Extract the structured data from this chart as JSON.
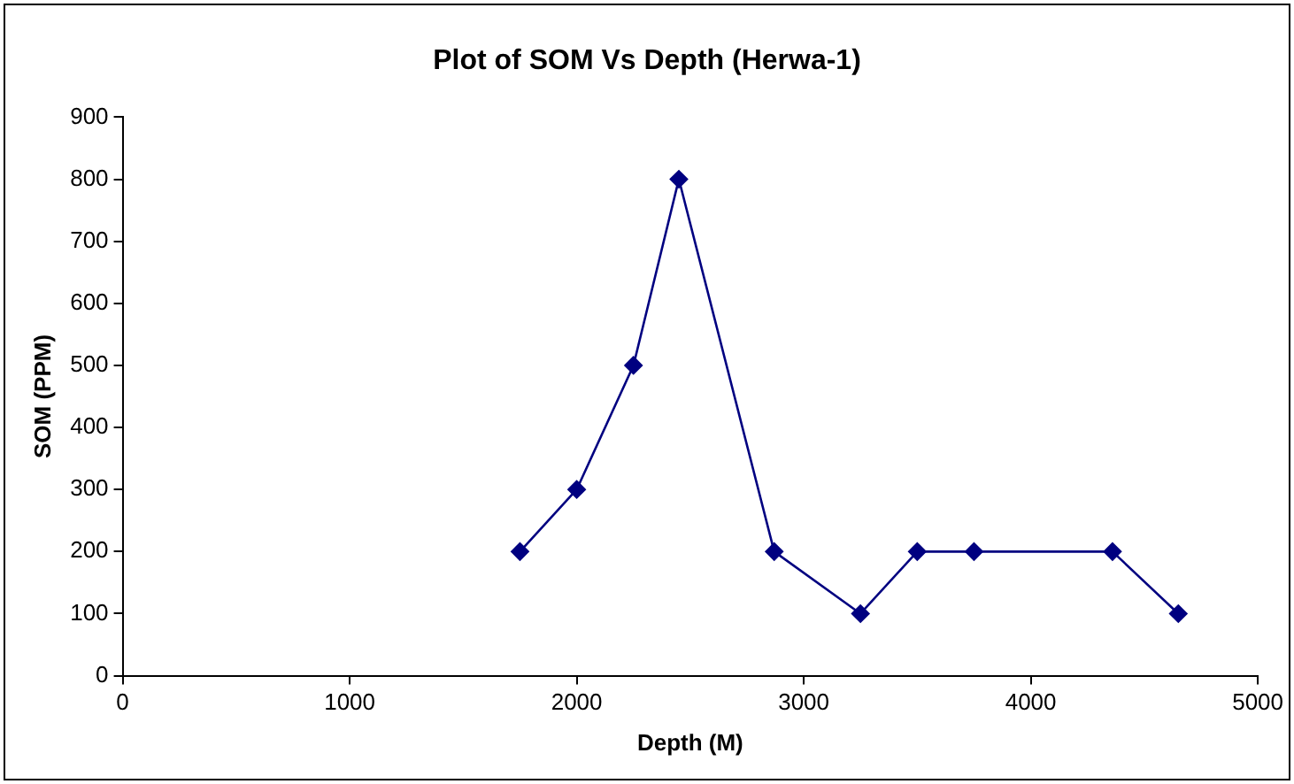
{
  "chart_data": {
    "type": "line",
    "title": "Plot of SOM Vs Depth (Herwa-1)",
    "xlabel": "Depth (M)",
    "ylabel": "SOM (PPM)",
    "x": [
      1750,
      2000,
      2250,
      2450,
      2870,
      3250,
      3500,
      3750,
      4360,
      4650
    ],
    "series": [
      {
        "color": "#000080",
        "values": [
          200,
          300,
          500,
          800,
          200,
          100,
          200,
          200,
          200,
          100
        ]
      }
    ],
    "xlim": [
      0,
      5000
    ],
    "xticks": [
      0,
      1000,
      2000,
      3000,
      4000,
      5000
    ],
    "ylim": [
      0,
      900
    ],
    "yticks": [
      0,
      100,
      200,
      300,
      400,
      500,
      600,
      700,
      800,
      900
    ],
    "grid": false,
    "legend": false,
    "marker": "diamond",
    "line_style": "solid"
  }
}
